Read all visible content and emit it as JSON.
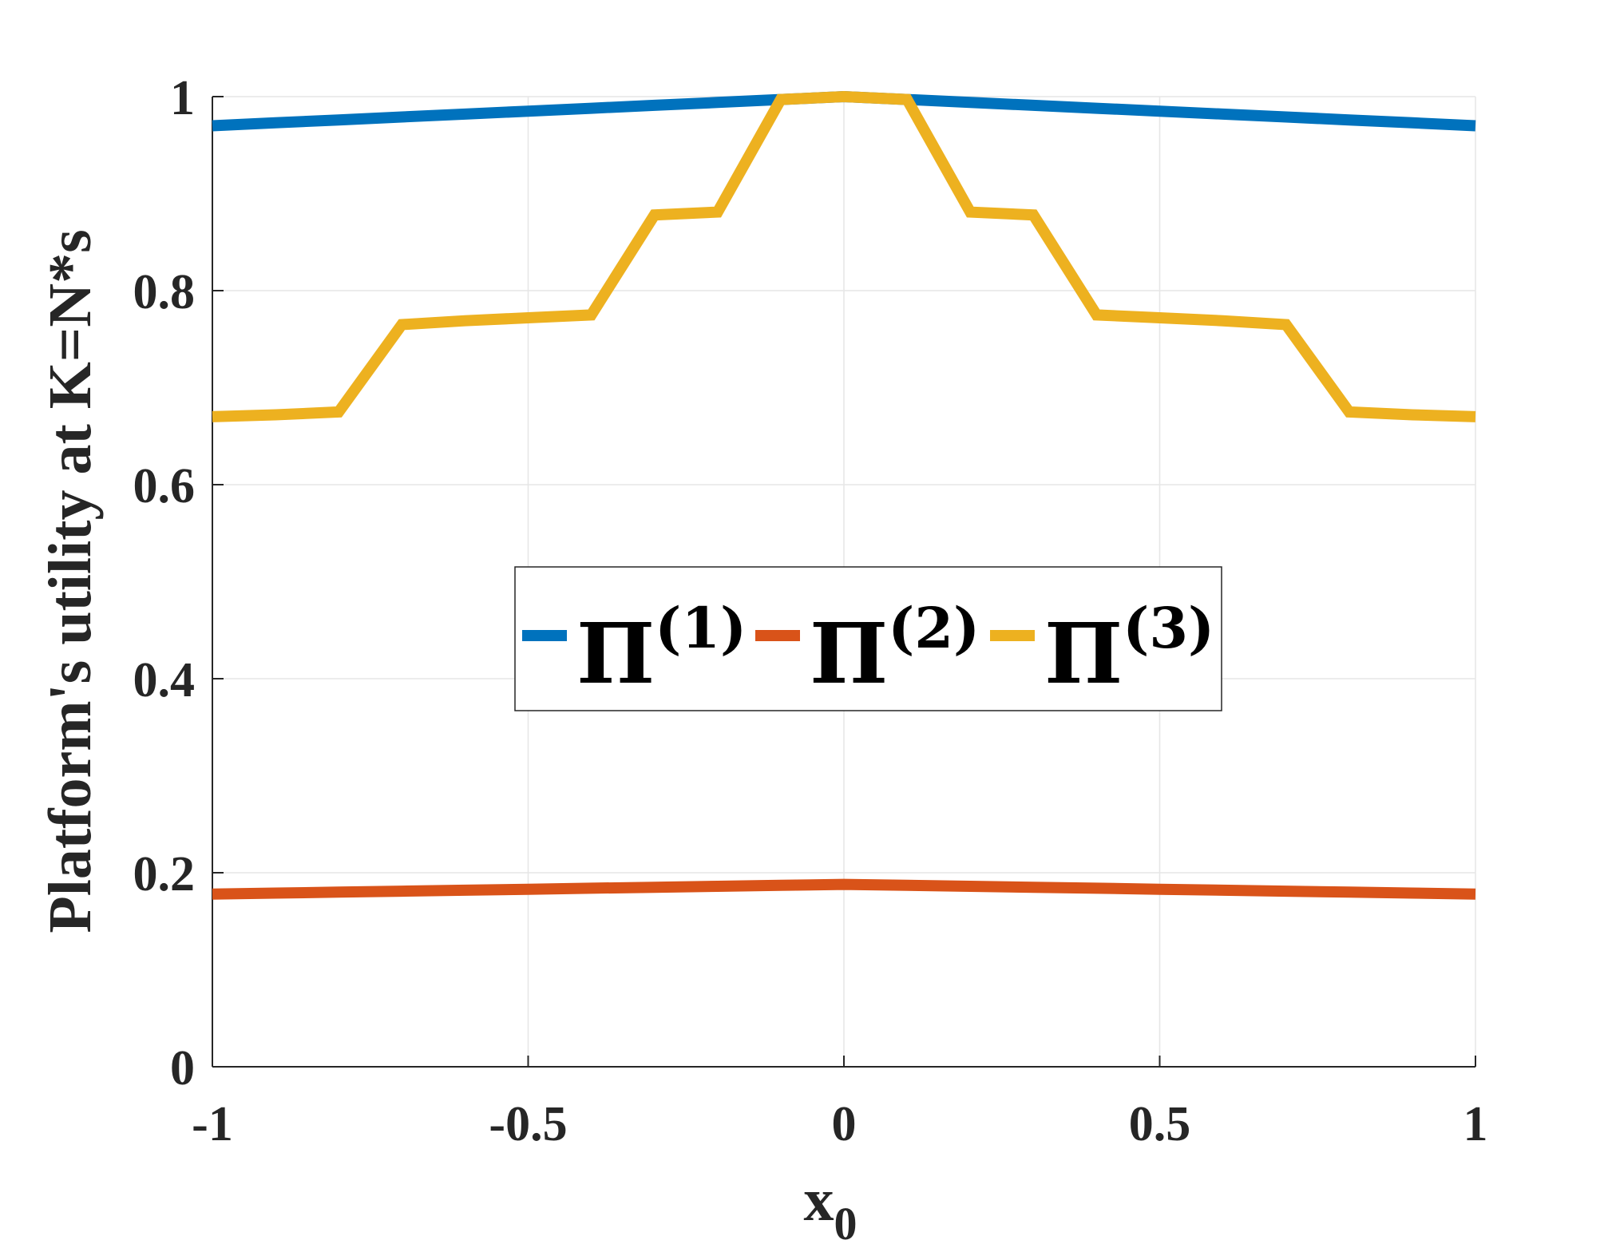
{
  "chart_data": {
    "type": "line",
    "title": "",
    "xlabel": "x",
    "xlabel_subscript": "0",
    "ylabel": "Platform's utility at K=N*s",
    "xlim": [
      -1,
      1
    ],
    "ylim": [
      0,
      1
    ],
    "xticks": [
      -1,
      -0.5,
      0,
      0.5,
      1
    ],
    "xtick_labels": [
      "-1",
      "-0.5",
      "0",
      "0.5",
      "1"
    ],
    "yticks": [
      0,
      0.2,
      0.4,
      0.6,
      0.8,
      1
    ],
    "ytick_labels": [
      "0",
      "0.2",
      "0.4",
      "0.6",
      "0.8",
      "1"
    ],
    "grid": true,
    "legend_position": "center",
    "legend_orientation": "horizontal",
    "x": [
      -1,
      -0.9,
      -0.8,
      -0.7,
      -0.6,
      -0.5,
      -0.4,
      -0.3,
      -0.2,
      -0.1,
      0,
      0.1,
      0.2,
      0.3,
      0.4,
      0.5,
      0.6,
      0.7,
      0.8,
      0.9,
      1
    ],
    "series": [
      {
        "name": "Π",
        "superscript": "(1)",
        "color": "#0072BD",
        "values": [
          0.97,
          0.973,
          0.976,
          0.979,
          0.982,
          0.985,
          0.988,
          0.991,
          0.994,
          0.997,
          1.0,
          0.997,
          0.994,
          0.991,
          0.988,
          0.985,
          0.982,
          0.979,
          0.976,
          0.973,
          0.97
        ]
      },
      {
        "name": "Π",
        "superscript": "(2)",
        "color": "#D95319",
        "values": [
          0.178,
          0.179,
          0.18,
          0.181,
          0.182,
          0.183,
          0.184,
          0.185,
          0.186,
          0.187,
          0.188,
          0.187,
          0.186,
          0.185,
          0.184,
          0.183,
          0.182,
          0.181,
          0.18,
          0.179,
          0.178
        ]
      },
      {
        "name": "Π",
        "superscript": "(3)",
        "color": "#EDB120",
        "values": [
          0.67,
          0.672,
          0.675,
          0.765,
          0.769,
          0.772,
          0.775,
          0.878,
          0.881,
          0.997,
          1.0,
          0.997,
          0.881,
          0.878,
          0.775,
          0.772,
          0.769,
          0.765,
          0.675,
          0.672,
          0.67
        ]
      }
    ]
  }
}
